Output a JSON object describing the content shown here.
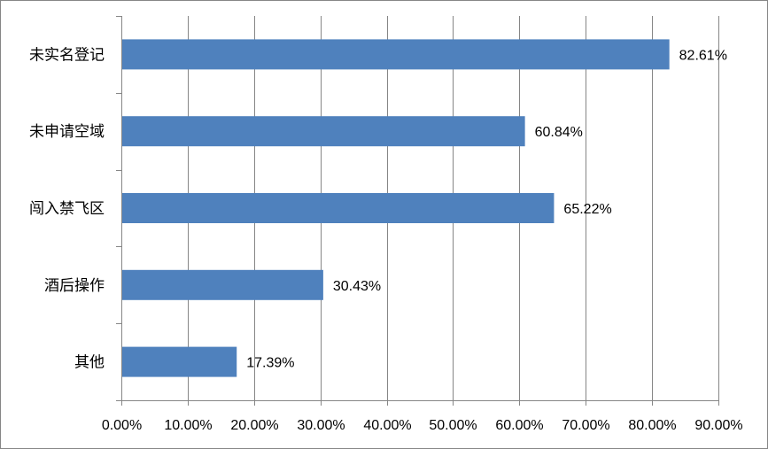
{
  "chart_data": {
    "type": "bar",
    "orientation": "horizontal",
    "categories": [
      "未实名登记",
      "未申请空域",
      "闯入禁飞区",
      "酒后操作",
      "其他"
    ],
    "values": [
      82.61,
      60.84,
      65.22,
      30.43,
      17.39
    ],
    "value_labels": [
      "82.61%",
      "60.84%",
      "65.22%",
      "30.43%",
      "17.39%"
    ],
    "xlim": [
      0,
      90
    ],
    "x_ticks": [
      0,
      10,
      20,
      30,
      40,
      50,
      60,
      70,
      80,
      90
    ],
    "x_tick_labels": [
      "0.00%",
      "10.00%",
      "20.00%",
      "30.00%",
      "40.00%",
      "50.00%",
      "60.00%",
      "70.00%",
      "80.00%",
      "90.00%"
    ],
    "grid": "vertical",
    "legend": "none",
    "title": "",
    "xlabel": "",
    "ylabel": "",
    "bar_color": "#4F81BD",
    "grid_color": "#868686"
  }
}
